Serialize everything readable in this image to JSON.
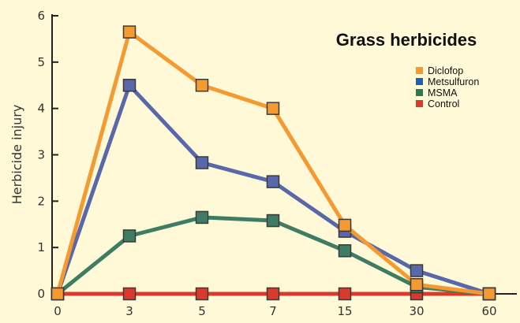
{
  "chart_data": {
    "type": "line",
    "title": "Grass herbicides",
    "xlabel": "",
    "ylabel": "Herbicide injury",
    "categories": [
      "0",
      "3",
      "5",
      "7",
      "15",
      "30",
      "60"
    ],
    "ylim": [
      0,
      6
    ],
    "yticks": [
      "0",
      "1",
      "2",
      "3",
      "4",
      "5",
      "6"
    ],
    "grid": false,
    "legend_position": "top-right",
    "series": [
      {
        "name": "Control",
        "color": "#d93a2b",
        "values": [
          0,
          0,
          0,
          0,
          0,
          0,
          0
        ]
      },
      {
        "name": "MSMA",
        "color": "#3e7d63",
        "values": [
          0,
          1.25,
          1.65,
          1.58,
          0.93,
          0.15,
          0
        ]
      },
      {
        "name": "Metsulfuron",
        "color": "#5868a8",
        "values": [
          0,
          4.5,
          2.83,
          2.42,
          1.35,
          0.5,
          0
        ]
      },
      {
        "name": "Diclofop",
        "color": "#f59a30",
        "values": [
          0,
          5.65,
          4.5,
          4.0,
          1.48,
          0.2,
          0
        ]
      }
    ],
    "legend": [
      {
        "name": "Diclofop",
        "color": "#f59a30"
      },
      {
        "name": "Metsulfuron",
        "color": "#1f5fb0"
      },
      {
        "name": "MSMA",
        "color": "#2a7a52"
      },
      {
        "name": "Control",
        "color": "#d93a2b"
      }
    ]
  }
}
